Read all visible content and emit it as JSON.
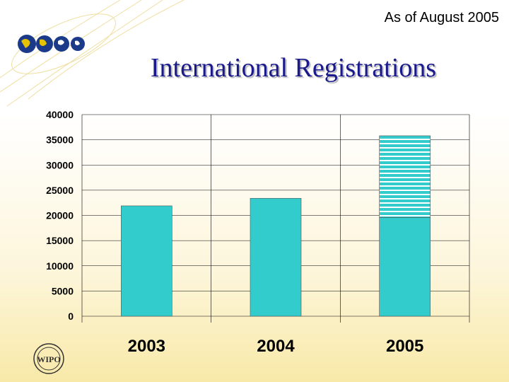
{
  "header": {
    "date_note": "As of August 2005",
    "title": "International Registrations"
  },
  "icons": {
    "logo": "globes-logo-icon",
    "seal": "wipo-seal-icon",
    "seal_text": "WIPO"
  },
  "colors": {
    "bar": "#33CCCC",
    "stripe": "#ffffff",
    "grid": "#000000"
  },
  "chart_data": {
    "type": "bar",
    "stacked": true,
    "categories": [
      "2003",
      "2004",
      "2005"
    ],
    "series": [
      {
        "values": [
          21900,
          23400,
          19600
        ],
        "fill": "solid"
      },
      {
        "values": [
          0,
          0,
          16200
        ],
        "fill": "striped"
      }
    ],
    "ylim": [
      0,
      40000
    ],
    "yticks": [
      "0",
      "5000",
      "10000",
      "15000",
      "20000",
      "25000",
      "30000",
      "35000",
      "40000"
    ],
    "grid": true
  }
}
